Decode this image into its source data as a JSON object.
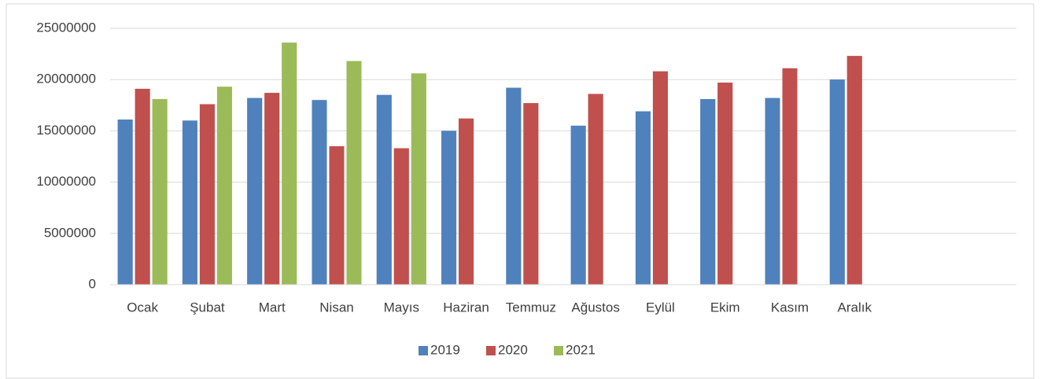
{
  "chart_data": {
    "type": "bar",
    "categories": [
      "Ocak",
      "Şubat",
      "Mart",
      "Nisan",
      "Mayıs",
      "Haziran",
      "Temmuz",
      "Ağustos",
      "Eylül",
      "Ekim",
      "Kasım",
      "Aralık",
      null,
      null
    ],
    "series": [
      {
        "name": "2019",
        "color": "#4f81bd",
        "values": [
          16100000,
          16000000,
          18200000,
          18000000,
          18500000,
          15000000,
          19200000,
          15500000,
          16900000,
          18100000,
          18200000,
          20000000,
          null,
          null
        ]
      },
      {
        "name": "2020",
        "color": "#c0504d",
        "values": [
          19100000,
          17600000,
          18700000,
          13500000,
          13300000,
          16200000,
          17700000,
          18600000,
          20800000,
          19700000,
          21100000,
          22300000,
          null,
          null
        ]
      },
      {
        "name": "2021",
        "color": "#9bbb59",
        "values": [
          18100000,
          19300000,
          23600000,
          21800000,
          20600000,
          null,
          null,
          null,
          null,
          null,
          null,
          null,
          null,
          null
        ]
      }
    ],
    "ylim": [
      0,
      25000000
    ],
    "yticks": [
      0,
      5000000,
      10000000,
      15000000,
      20000000,
      25000000
    ],
    "grid": true,
    "legend": "bottom"
  }
}
